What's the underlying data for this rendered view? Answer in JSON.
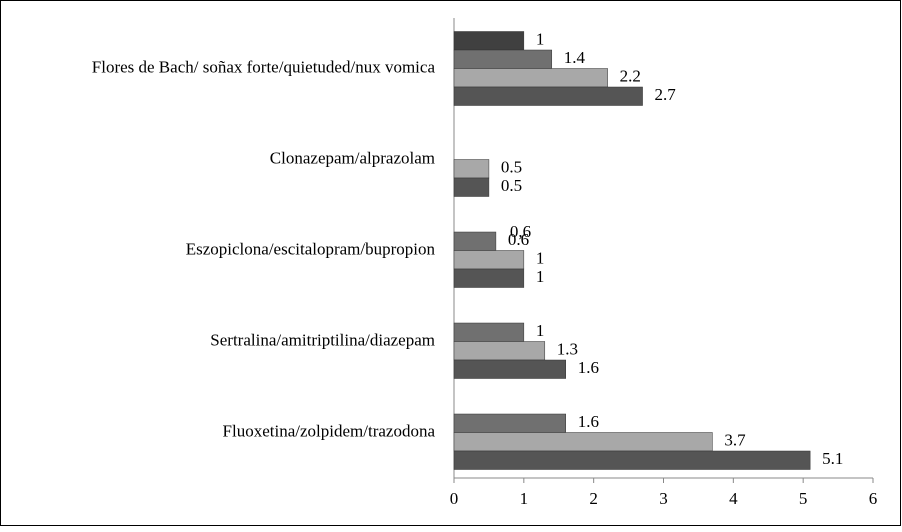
{
  "chart_data": {
    "type": "hbar",
    "categories": [
      "Flores de Bach/ soñax forte/quietuded/nux vomica",
      "Clonazepam/alprazolam",
      "Eszopiclona/escitalopram/bupropion",
      "Sertralina/amitriptilina/diazepam",
      "Fluoxetina/zolpidem/trazodona"
    ],
    "series": [
      {
        "color": "#404040",
        "values": [
          1,
          null,
          null,
          null,
          null
        ]
      },
      {
        "color": "#707070",
        "values": [
          1.4,
          null,
          0.6,
          1,
          1.6
        ]
      },
      {
        "color": "#a8a8a8",
        "values": [
          2.2,
          0.5,
          1,
          1.3,
          3.7
        ]
      },
      {
        "color": "#555555",
        "values": [
          2.7,
          0.5,
          1,
          1.6,
          5.1
        ]
      }
    ],
    "annotations": [
      {
        "text": "0,6"
      }
    ],
    "xlim": [
      0,
      6
    ],
    "xticks": [
      0,
      1,
      2,
      3,
      4,
      5,
      6
    ]
  }
}
